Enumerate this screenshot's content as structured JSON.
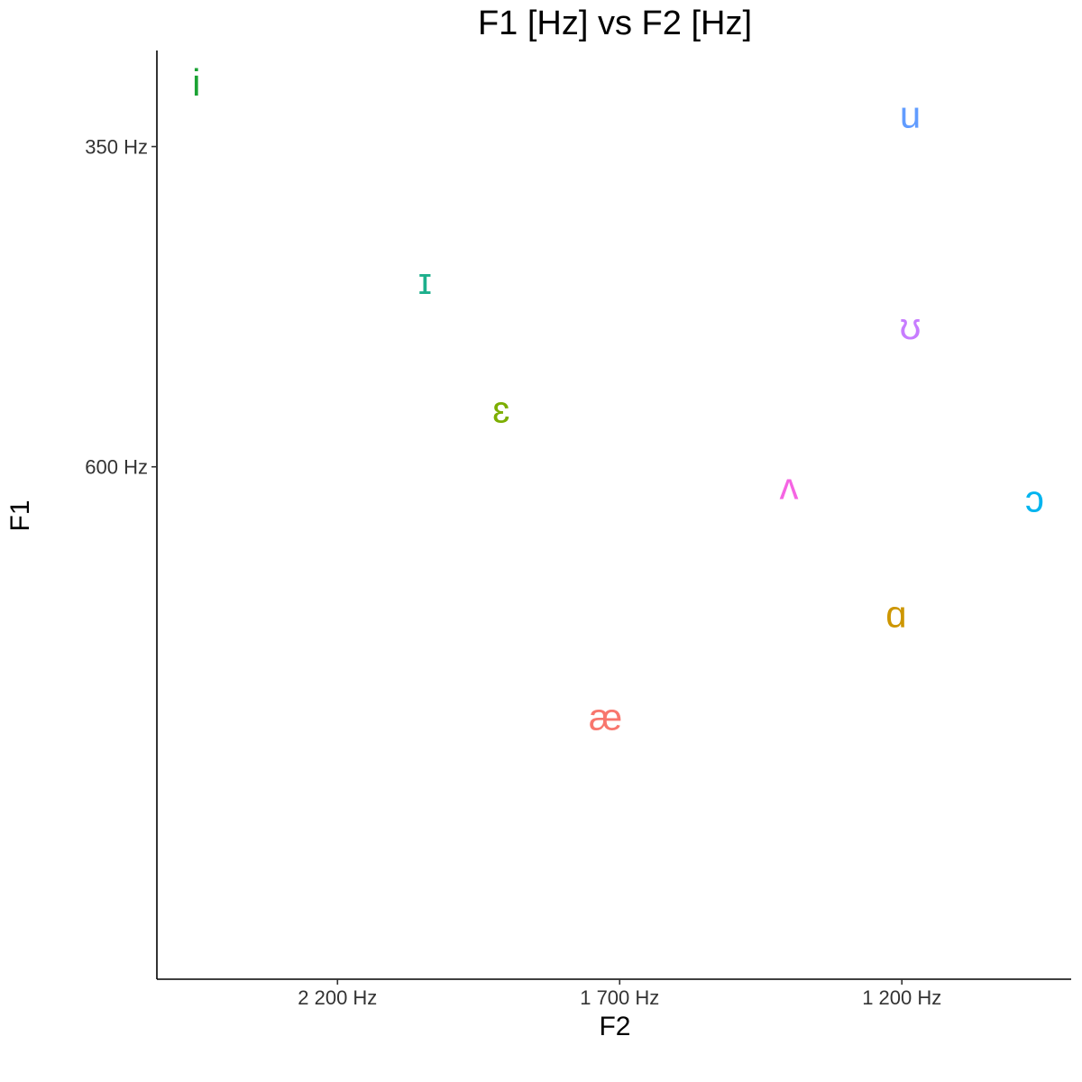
{
  "chart_data": {
    "type": "scatter",
    "title": "F1 [Hz] vs F2 [Hz]",
    "xlabel": "F2",
    "ylabel": "F1",
    "x_reversed": true,
    "y_reversed": true,
    "grid": false,
    "legend": "none",
    "xlim": [
      2520,
      900
    ],
    "ylim": [
      275,
      1000
    ],
    "x_ticks": [
      {
        "value": 2200,
        "label": "2 200 Hz"
      },
      {
        "value": 1700,
        "label": "1 700 Hz"
      },
      {
        "value": 1200,
        "label": "1 200 Hz"
      }
    ],
    "y_ticks": [
      {
        "value": 350,
        "label": "350 Hz"
      },
      {
        "value": 600,
        "label": "600 Hz"
      }
    ],
    "points": [
      {
        "label": "i",
        "f2": 2450,
        "f1": 300,
        "color": "#1BA334"
      },
      {
        "label": "u",
        "f2": 1185,
        "f1": 325,
        "color": "#619CFF"
      },
      {
        "label": "ɪ",
        "f2": 2045,
        "f1": 455,
        "color": "#1DAF8C"
      },
      {
        "label": "ʊ",
        "f2": 1185,
        "f1": 490,
        "color": "#C77CFF"
      },
      {
        "label": "ɛ",
        "f2": 1910,
        "f1": 555,
        "color": "#7CAE00"
      },
      {
        "label": "ʌ",
        "f2": 1400,
        "f1": 615,
        "color": "#F564E3"
      },
      {
        "label": "ɔ",
        "f2": 965,
        "f1": 625,
        "color": "#00B4EF"
      },
      {
        "label": "ɑ",
        "f2": 1210,
        "f1": 715,
        "color": "#CD9600"
      },
      {
        "label": "æ",
        "f2": 1725,
        "f1": 795,
        "color": "#F8766D"
      }
    ]
  }
}
